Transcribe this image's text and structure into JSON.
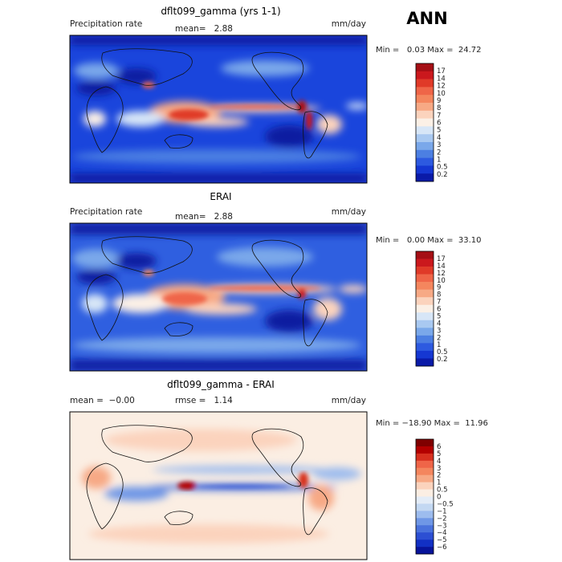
{
  "season": "ANN",
  "panels": [
    {
      "title": "dflt099_gamma (yrs 1-1)",
      "left_label": "Precipitation rate",
      "center_label": "mean=   2.88",
      "units": "mm/day",
      "stats": "Min =   0.03 Max =  24.72"
    },
    {
      "title": "ERAI",
      "left_label": "Precipitation rate",
      "center_label": "mean=   2.88",
      "units": "mm/day",
      "stats": "Min =   0.00 Max =  33.10"
    },
    {
      "title": "dflt099_gamma - ERAI",
      "left_label": "mean =  −0.00",
      "center_label": "rmse =   1.14",
      "units": "mm/day",
      "stats": "Min = −18.90 Max =  11.96"
    }
  ],
  "chart_data": [
    {
      "type": "heatmap",
      "title": "dflt099_gamma (yrs 1-1)",
      "variable": "Precipitation rate",
      "units": "mm/day",
      "mean": 2.88,
      "min": 0.03,
      "max": 24.72,
      "colorbar_levels": [
        "17",
        "14",
        "12",
        "10",
        "9",
        "8",
        "7",
        "6",
        "5",
        "4",
        "3",
        "2",
        "1",
        "0.5",
        "0.2"
      ],
      "colorbar_colors": [
        "#a50f15",
        "#cb181d",
        "#e03a28",
        "#ef6548",
        "#f4865e",
        "#f7a985",
        "#fbd3bd",
        "#fbf0e6",
        "#d7e6f7",
        "#a9c9f1",
        "#7aa8ea",
        "#4c7fe2",
        "#2d5ae0",
        "#1537d2",
        "#0a1aa8"
      ],
      "grid": false
    },
    {
      "type": "heatmap",
      "title": "ERAI",
      "variable": "Precipitation rate",
      "units": "mm/day",
      "mean": 2.88,
      "min": 0.0,
      "max": 33.1,
      "colorbar_levels": [
        "17",
        "14",
        "12",
        "10",
        "9",
        "8",
        "7",
        "6",
        "5",
        "4",
        "3",
        "2",
        "1",
        "0.5",
        "0.2"
      ],
      "colorbar_colors": [
        "#a50f15",
        "#cb181d",
        "#e03a28",
        "#ef6548",
        "#f4865e",
        "#f7a985",
        "#fbd3bd",
        "#fbf0e6",
        "#d7e6f7",
        "#a9c9f1",
        "#7aa8ea",
        "#4c7fe2",
        "#2d5ae0",
        "#1537d2",
        "#0a1aa8"
      ],
      "grid": false
    },
    {
      "type": "heatmap",
      "title": "dflt099_gamma - ERAI",
      "units": "mm/day",
      "mean": -0.0,
      "rmse": 1.14,
      "min": -18.9,
      "max": 11.96,
      "colorbar_levels": [
        "6",
        "5",
        "4",
        "3",
        "2",
        "1",
        "0.5",
        "0",
        "−0.5",
        "−1",
        "−2",
        "−3",
        "−4",
        "−5",
        "−6"
      ],
      "colorbar_colors": [
        "#7f0000",
        "#b30000",
        "#d7301f",
        "#ef6548",
        "#f4865e",
        "#f7a985",
        "#fbd3bd",
        "#fbeee3",
        "#e3ecf7",
        "#c3d8f2",
        "#9dbcee",
        "#6f97e6",
        "#4a72dc",
        "#2c4fd3",
        "#1230c4",
        "#07139a"
      ],
      "grid": false
    }
  ]
}
